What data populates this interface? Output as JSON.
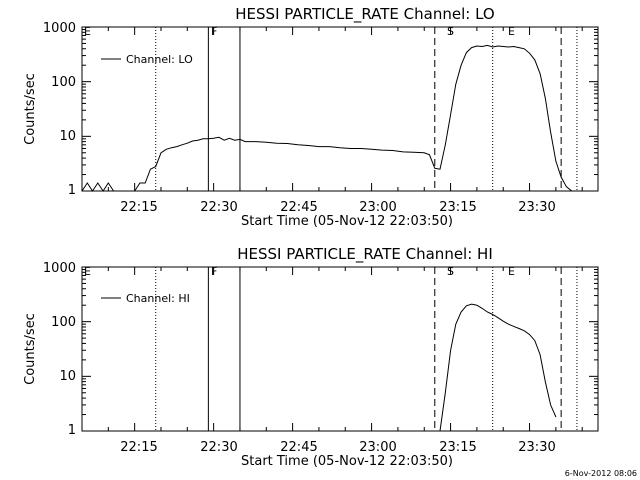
{
  "footer": {
    "timestamp": "6-Nov-2012 08:06"
  },
  "chart_data": [
    {
      "type": "line",
      "title": "HESSI PARTICLE_RATE Channel: LO",
      "xlabel": "Start Time (05-Nov-12 22:03:50)",
      "ylabel": "Counts/sec",
      "yscale": "log",
      "xlim": [
        "22:05",
        "23:43"
      ],
      "ylim": [
        1,
        1000
      ],
      "xticks": [
        "22:15",
        "22:30",
        "22:45",
        "23:00",
        "23:15",
        "23:30"
      ],
      "yticks": [
        "1",
        "10",
        "100",
        "1000"
      ],
      "legend": {
        "position": "top-left",
        "entries": [
          "Channel: LO"
        ]
      },
      "markers": [
        {
          "time": "22:05",
          "style": "none",
          "label": "E"
        },
        {
          "time": "22:19",
          "style": "dotted",
          "label": ""
        },
        {
          "time": "22:29",
          "style": "solid",
          "label": "F"
        },
        {
          "time": "22:35",
          "style": "solid",
          "label": ""
        },
        {
          "time": "23:12",
          "style": "dashed",
          "label": "S"
        },
        {
          "time": "23:23",
          "style": "dotted",
          "label": "E"
        },
        {
          "time": "23:36",
          "style": "dashed",
          "label": ""
        },
        {
          "time": "23:39",
          "style": "dotted",
          "label": ""
        }
      ],
      "series": [
        {
          "name": "Channel: LO",
          "x": [
            "22:05",
            "22:06",
            "22:07",
            "22:08",
            "22:09",
            "22:10",
            "22:11",
            "22:12",
            "22:13",
            "22:14",
            "22:15",
            "22:16",
            "22:17",
            "22:18",
            "22:19",
            "22:20",
            "22:21",
            "22:22",
            "22:23",
            "22:24",
            "22:25",
            "22:26",
            "22:27",
            "22:28",
            "22:29",
            "22:30",
            "22:31",
            "22:32",
            "22:33",
            "22:34",
            "22:35",
            "22:36",
            "22:38",
            "22:40",
            "22:42",
            "22:44",
            "22:46",
            "22:48",
            "22:50",
            "22:52",
            "22:54",
            "22:56",
            "22:58",
            "23:00",
            "23:02",
            "23:04",
            "23:06",
            "23:08",
            "23:10",
            "23:11",
            "23:12",
            "23:13",
            "23:14",
            "23:15",
            "23:16",
            "23:17",
            "23:18",
            "23:19",
            "23:20",
            "23:21",
            "23:22",
            "23:23",
            "23:24",
            "23:25",
            "23:26",
            "23:27",
            "23:28",
            "23:29",
            "23:30",
            "23:31",
            "23:32",
            "23:33",
            "23:34",
            "23:35",
            "23:36",
            "23:37",
            "23:38"
          ],
          "y": [
            1,
            1.4,
            1,
            1.4,
            1,
            1.4,
            1,
            1,
            1,
            1,
            1,
            1.4,
            1.4,
            2.5,
            2.8,
            5,
            5.8,
            6.2,
            6.5,
            7,
            7.5,
            8.2,
            8.5,
            9,
            9,
            9.2,
            9.6,
            8.5,
            9.2,
            8.5,
            8.8,
            8,
            8,
            7.8,
            7.5,
            7.4,
            7,
            6.8,
            6.5,
            6.5,
            6.2,
            6,
            6,
            5.8,
            5.6,
            5.5,
            5.2,
            5.1,
            5,
            4.6,
            2.6,
            2.5,
            7,
            25,
            90,
            200,
            340,
            420,
            450,
            440,
            460,
            430,
            450,
            440,
            430,
            440,
            420,
            400,
            330,
            250,
            140,
            50,
            12,
            3.5,
            1.8,
            1.2,
            1
          ]
        }
      ]
    },
    {
      "type": "line",
      "title": "HESSI PARTICLE_RATE Channel: HI",
      "xlabel": "Start Time (05-Nov-12 22:03:50)",
      "ylabel": "Counts/sec",
      "yscale": "log",
      "xlim": [
        "22:05",
        "23:43"
      ],
      "ylim": [
        1,
        1000
      ],
      "xticks": [
        "22:15",
        "22:30",
        "22:45",
        "23:00",
        "23:15",
        "23:30"
      ],
      "yticks": [
        "1",
        "10",
        "100",
        "1000"
      ],
      "legend": {
        "position": "top-left",
        "entries": [
          "Channel: HI"
        ]
      },
      "markers": [
        {
          "time": "22:05",
          "style": "none",
          "label": "E"
        },
        {
          "time": "22:19",
          "style": "dotted",
          "label": ""
        },
        {
          "time": "22:29",
          "style": "solid",
          "label": "F"
        },
        {
          "time": "22:35",
          "style": "solid",
          "label": ""
        },
        {
          "time": "23:12",
          "style": "dashed",
          "label": "S"
        },
        {
          "time": "23:23",
          "style": "dotted",
          "label": "E"
        },
        {
          "time": "23:36",
          "style": "dashed",
          "label": ""
        },
        {
          "time": "23:39",
          "style": "dotted",
          "label": ""
        }
      ],
      "series": [
        {
          "name": "Channel: HI",
          "x": [
            "23:13",
            "23:14",
            "23:15",
            "23:16",
            "23:17",
            "23:18",
            "23:19",
            "23:20",
            "23:21",
            "23:22",
            "23:23",
            "23:24",
            "23:25",
            "23:26",
            "23:27",
            "23:28",
            "23:29",
            "23:30",
            "23:31",
            "23:32",
            "23:33",
            "23:34",
            "23:35"
          ],
          "y": [
            1,
            5,
            30,
            90,
            150,
            195,
            210,
            200,
            175,
            150,
            135,
            118,
            102,
            90,
            82,
            75,
            68,
            58,
            45,
            25,
            8,
            3,
            1.8
          ]
        }
      ]
    }
  ]
}
